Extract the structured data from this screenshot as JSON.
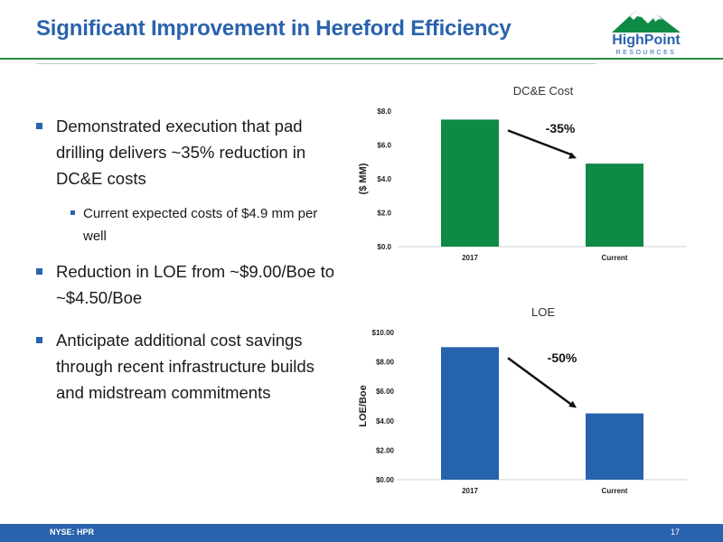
{
  "slide": {
    "title": "Significant Improvement in Hereford Efficiency",
    "logo": {
      "name": "HighPoint",
      "subtitle": "RESOURCES"
    },
    "bullets": [
      {
        "text": "Demonstrated execution that pad drilling delivers ~35% reduction in DC&E costs"
      },
      {
        "text": "Reduction in LOE from ~$9.00/Boe to ~$4.50/Boe"
      },
      {
        "text": "Anticipate additional cost savings through recent infrastructure builds and midstream commitments"
      }
    ],
    "sub_bullets": [
      {
        "text": "Current expected costs of $4.9 mm per well"
      }
    ],
    "footer": {
      "ticker": "NYSE: HPR",
      "page_number": "17"
    }
  },
  "colors": {
    "title_blue": "#2a63ad",
    "green": "#0f8a44",
    "blue": "#2563ad",
    "rule_green": "#2d8a47"
  },
  "chart_data": [
    {
      "type": "bar",
      "title": "DC&E Cost",
      "ylabel": "($ MM)",
      "xlabel": "",
      "categories": [
        "2017",
        "Current"
      ],
      "values": [
        7.5,
        4.9
      ],
      "ylim": [
        0,
        8
      ],
      "yticks": [
        0,
        2,
        4,
        6,
        8
      ],
      "ytick_labels": [
        "$0.0",
        "$2.0",
        "$4.0",
        "$6.0",
        "$8.0"
      ],
      "bar_color": "#0f8a44",
      "annotation": "-35%",
      "grid": false
    },
    {
      "type": "bar",
      "title": "LOE",
      "ylabel": "LOE/Boe",
      "xlabel": "",
      "categories": [
        "2017",
        "Current"
      ],
      "values": [
        9.0,
        4.5
      ],
      "ylim": [
        0,
        10
      ],
      "yticks": [
        0,
        2,
        4,
        6,
        8,
        10
      ],
      "ytick_labels": [
        "$0.00",
        "$2.00",
        "$4.00",
        "$6.00",
        "$8.00",
        "$10.00"
      ],
      "bar_color": "#2563ad",
      "annotation": "-50%",
      "grid": false
    }
  ]
}
